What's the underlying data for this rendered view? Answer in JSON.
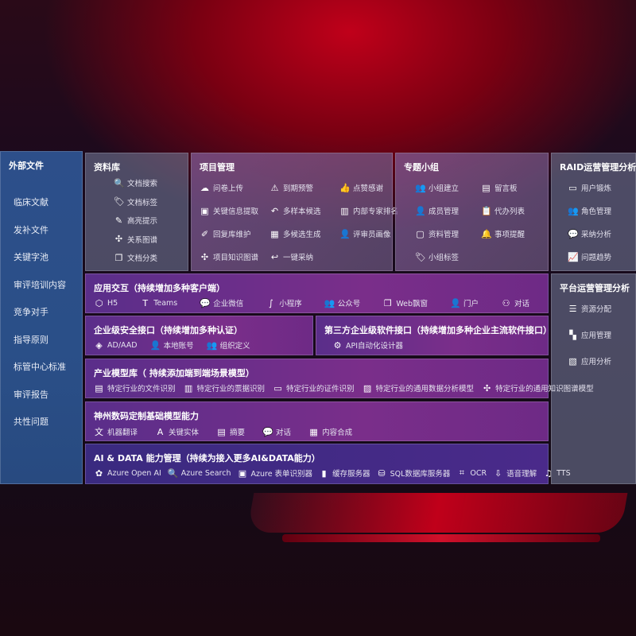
{
  "external": {
    "title": "外部文件",
    "items": [
      "临床文献",
      "发补文件",
      "关键字池",
      "审评培训内容",
      "竞争对手",
      "指导原则",
      "标管中心标准",
      "审评报告",
      "共性问题"
    ]
  },
  "library": {
    "title": "资料库",
    "items": [
      {
        "icon": "doc-search-icon",
        "g": "🔍",
        "label": "文档搜索"
      },
      {
        "icon": "tag-icon",
        "g": "🏷",
        "label": "文档标签"
      },
      {
        "icon": "pen-icon",
        "g": "✎",
        "label": "高亮提示"
      },
      {
        "icon": "graph-icon",
        "g": "✣",
        "label": "关系图谱"
      },
      {
        "icon": "doc-copy-icon",
        "g": "❐",
        "label": "文档分类"
      }
    ]
  },
  "project": {
    "title": "项目管理",
    "items": [
      {
        "icon": "upload-cloud-icon",
        "g": "☁",
        "label": "问卷上传"
      },
      {
        "icon": "alarm-icon",
        "g": "⚠",
        "label": "到期预警"
      },
      {
        "icon": "thumbs-up-icon",
        "g": "👍",
        "label": "点赞感谢"
      },
      {
        "icon": "window-icon",
        "g": "▣",
        "label": "关键信息提取"
      },
      {
        "icon": "reply-all-icon",
        "g": "↶",
        "label": "多样本候选"
      },
      {
        "icon": "ranking-icon",
        "g": "▥",
        "label": "内部专家排名"
      },
      {
        "icon": "edit-icon",
        "g": "✐",
        "label": "回复库维护"
      },
      {
        "icon": "puzzle-icon",
        "g": "▦",
        "label": "多候选生成"
      },
      {
        "icon": "person-icon",
        "g": "👤",
        "label": "评审员画像"
      },
      {
        "icon": "network-icon",
        "g": "✣",
        "label": "项目知识图谱"
      },
      {
        "icon": "reply-icon",
        "g": "↩",
        "label": "一键采纳"
      }
    ]
  },
  "group": {
    "title": "专题小组",
    "items": [
      {
        "icon": "users-icon",
        "g": "👥",
        "label": "小组建立"
      },
      {
        "icon": "bbs-icon",
        "g": "▤",
        "label": "留言板"
      },
      {
        "icon": "add-user-icon",
        "g": "👤",
        "label": "成员管理"
      },
      {
        "icon": "clipboard-icon",
        "g": "📋",
        "label": "代办列表"
      },
      {
        "icon": "folder-icon",
        "g": "▢",
        "label": "资料管理"
      },
      {
        "icon": "bell-icon",
        "g": "🔔",
        "label": "事项提醒"
      },
      {
        "icon": "tag-icon",
        "g": "🏷",
        "label": "小组标签"
      }
    ]
  },
  "raid": {
    "title": "RAID运营管理分析",
    "items": [
      {
        "icon": "id-card-icon",
        "g": "▭",
        "label": "用户锻炼"
      },
      {
        "icon": "users-icon",
        "g": "👥",
        "label": "角色管理"
      },
      {
        "icon": "qa-icon",
        "g": "💬",
        "label": "采纳分析"
      },
      {
        "icon": "trend-icon",
        "g": "📈",
        "label": "问题趋势"
      }
    ]
  },
  "platform": {
    "title": "平台运营管理分析",
    "items": [
      {
        "icon": "list-icon",
        "g": "☰",
        "label": "资源分配"
      },
      {
        "icon": "apps-icon",
        "g": "▚",
        "label": "应用管理"
      },
      {
        "icon": "chart-icon",
        "g": "▧",
        "label": "应用分析"
      }
    ]
  },
  "rows": [
    {
      "key": "app",
      "title": "应用交互（持续增加多种客户端）",
      "items": [
        {
          "icon": "html5-icon",
          "g": "⬡",
          "label": "H5"
        },
        {
          "icon": "teams-icon",
          "g": "T",
          "label": "Teams"
        },
        {
          "icon": "wechat-icon",
          "g": "💬",
          "label": "企业微信"
        },
        {
          "icon": "miniprogram-icon",
          "g": "∫",
          "label": "小程序"
        },
        {
          "icon": "users-icon",
          "g": "👥",
          "label": "公众号"
        },
        {
          "icon": "window-icon",
          "g": "❐",
          "label": "Web飘窗"
        },
        {
          "icon": "portal-icon",
          "g": "👤",
          "label": "门户"
        },
        {
          "icon": "chat-icon",
          "g": "⚇",
          "label": "对话"
        }
      ]
    },
    {
      "key": "sec",
      "title": "企业级安全接口（持续增加多种认证）",
      "items": [
        {
          "icon": "aad-icon",
          "g": "◈",
          "label": "AD/AAD"
        },
        {
          "icon": "local-account-icon",
          "g": "👤",
          "label": "本地账号"
        },
        {
          "icon": "org-icon",
          "g": "👥",
          "label": "组织定义"
        }
      ]
    },
    {
      "key": "third",
      "title": "第三方企业级软件接口（持续增加多种企业主流软件接口）",
      "items": [
        {
          "icon": "api-gear-icon",
          "g": "⚙",
          "label": "API自动化设计器"
        }
      ]
    },
    {
      "key": "industry",
      "title": "产业模型库（ 持续添加端到端场景模型）",
      "items": [
        {
          "icon": "file-icon",
          "g": "▤",
          "label": "特定行业的文件识别"
        },
        {
          "icon": "receipt-icon",
          "g": "▥",
          "label": "特定行业的票据识别"
        },
        {
          "icon": "id-card-icon",
          "g": "▭",
          "label": "特定行业的证件识别"
        },
        {
          "icon": "data-analysis-icon",
          "g": "▨",
          "label": "特定行业的通用数据分析模型"
        },
        {
          "icon": "knowledge-graph-icon",
          "g": "✣",
          "label": "特定行业的通用知识图谱模型"
        }
      ]
    },
    {
      "key": "base",
      "title": "神州数码定制基础模型能力",
      "items": [
        {
          "icon": "translate-icon",
          "g": "文",
          "label": "机器翻译"
        },
        {
          "icon": "entity-icon",
          "g": "A",
          "label": "关键实体"
        },
        {
          "icon": "summary-icon",
          "g": "▤",
          "label": "摘要"
        },
        {
          "icon": "dialog-icon",
          "g": "💬",
          "label": "对话"
        },
        {
          "icon": "compose-icon",
          "g": "▦",
          "label": "内容合成"
        }
      ]
    },
    {
      "key": "ai",
      "title": "AI & DATA 能力管理（持续为接入更多AI&DATA能力）",
      "items": [
        {
          "icon": "openai-icon",
          "g": "✿",
          "label": "Azure Open AI"
        },
        {
          "icon": "azure-search-icon",
          "g": "🔍",
          "label": "Azure Search"
        },
        {
          "icon": "form-recognizer-icon",
          "g": "▣",
          "label": "Azure 表单识别器"
        },
        {
          "icon": "cache-server-icon",
          "g": "▮",
          "label": "缓存服务器"
        },
        {
          "icon": "sql-icon",
          "g": "⛁",
          "label": "SQL数据库服务器"
        },
        {
          "icon": "ocr-icon",
          "g": "⌗",
          "label": "OCR"
        },
        {
          "icon": "speech-icon",
          "g": "⇩",
          "label": "语音理解"
        },
        {
          "icon": "tts-icon",
          "g": "♫",
          "label": "TTS"
        }
      ]
    }
  ]
}
